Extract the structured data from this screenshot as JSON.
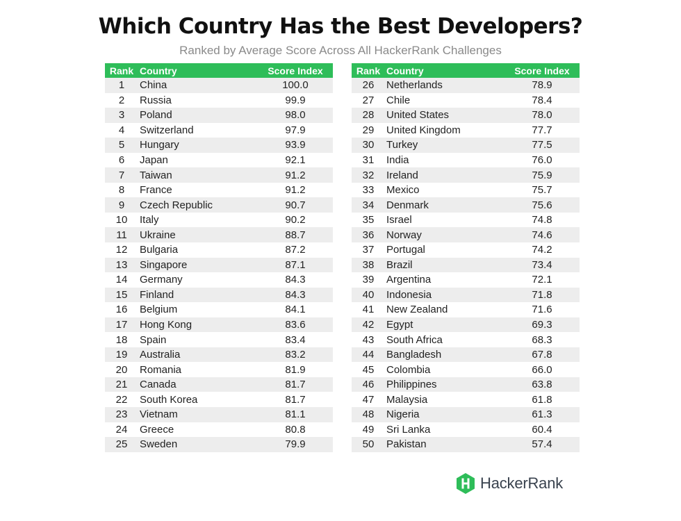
{
  "chart_data": {
    "type": "table",
    "title": "Which Country Has the Best Developers?",
    "subtitle": "Ranked by Average Score Across All HackerRank Challenges",
    "columns": [
      "Rank",
      "Country",
      "Score Index"
    ],
    "rows": [
      [
        1,
        "China",
        "100.0"
      ],
      [
        2,
        "Russia",
        "99.9"
      ],
      [
        3,
        "Poland",
        "98.0"
      ],
      [
        4,
        "Switzerland",
        "97.9"
      ],
      [
        5,
        "Hungary",
        "93.9"
      ],
      [
        6,
        "Japan",
        "92.1"
      ],
      [
        7,
        "Taiwan",
        "91.2"
      ],
      [
        8,
        "France",
        "91.2"
      ],
      [
        9,
        "Czech Republic",
        "90.7"
      ],
      [
        10,
        "Italy",
        "90.2"
      ],
      [
        11,
        "Ukraine",
        "88.7"
      ],
      [
        12,
        "Bulgaria",
        "87.2"
      ],
      [
        13,
        "Singapore",
        "87.1"
      ],
      [
        14,
        "Germany",
        "84.3"
      ],
      [
        15,
        "Finland",
        "84.3"
      ],
      [
        16,
        "Belgium",
        "84.1"
      ],
      [
        17,
        "Hong Kong",
        "83.6"
      ],
      [
        18,
        "Spain",
        "83.4"
      ],
      [
        19,
        "Australia",
        "83.2"
      ],
      [
        20,
        "Romania",
        "81.9"
      ],
      [
        21,
        "Canada",
        "81.7"
      ],
      [
        22,
        "South Korea",
        "81.7"
      ],
      [
        23,
        "Vietnam",
        "81.1"
      ],
      [
        24,
        "Greece",
        "80.8"
      ],
      [
        25,
        "Sweden",
        "79.9"
      ],
      [
        26,
        "Netherlands",
        "78.9"
      ],
      [
        27,
        "Chile",
        "78.4"
      ],
      [
        28,
        "United States",
        "78.0"
      ],
      [
        29,
        "United Kingdom",
        "77.7"
      ],
      [
        30,
        "Turkey",
        "77.5"
      ],
      [
        31,
        "India",
        "76.0"
      ],
      [
        32,
        "Ireland",
        "75.9"
      ],
      [
        33,
        "Mexico",
        "75.7"
      ],
      [
        34,
        "Denmark",
        "75.6"
      ],
      [
        35,
        "Israel",
        "74.8"
      ],
      [
        36,
        "Norway",
        "74.6"
      ],
      [
        37,
        "Portugal",
        "74.2"
      ],
      [
        38,
        "Brazil",
        "73.4"
      ],
      [
        39,
        "Argentina",
        "72.1"
      ],
      [
        40,
        "Indonesia",
        "71.8"
      ],
      [
        41,
        "New Zealand",
        "71.6"
      ],
      [
        42,
        "Egypt",
        "69.3"
      ],
      [
        43,
        "South Africa",
        "68.3"
      ],
      [
        44,
        "Bangladesh",
        "67.8"
      ],
      [
        45,
        "Colombia",
        "66.0"
      ],
      [
        46,
        "Philippines",
        "63.8"
      ],
      [
        47,
        "Malaysia",
        "61.8"
      ],
      [
        48,
        "Nigeria",
        "61.3"
      ],
      [
        49,
        "Sri Lanka",
        "60.4"
      ],
      [
        50,
        "Pakistan",
        "57.4"
      ]
    ],
    "split_after_row": 25
  },
  "branding": {
    "logo_text": "HackerRank",
    "logo_icon": "hackerrank-hexagon-icon",
    "accent_color": "#2ebd59"
  }
}
